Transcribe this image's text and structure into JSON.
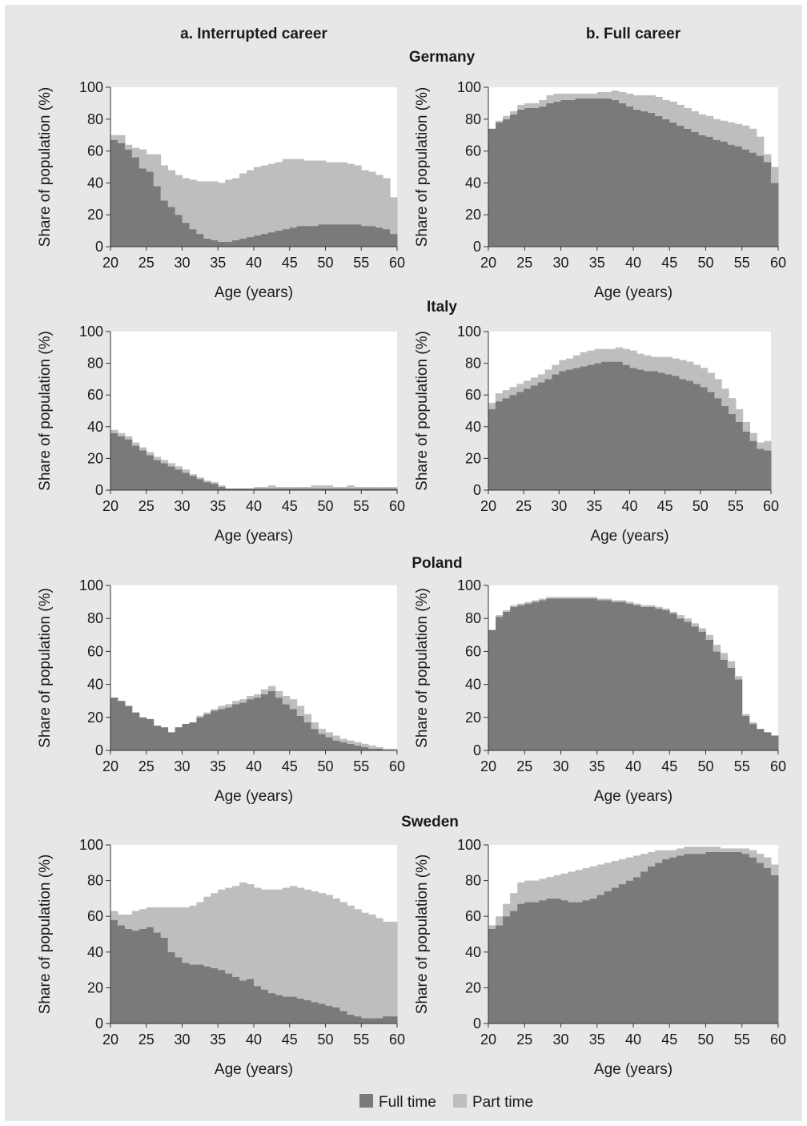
{
  "column_titles": [
    "a. Interrupted career",
    "b. Full career"
  ],
  "legend": {
    "full_time_label": "Full time",
    "part_time_label": "Part time",
    "full_time_color": "#7a7a7c",
    "part_time_color": "#bdbec0"
  },
  "chart_data": [
    {
      "type": "area",
      "country": "Germany",
      "panel": "a. Interrupted career",
      "xlabel": "Age (years)",
      "ylabel": "Share of population (%)",
      "xlim": [
        20,
        60
      ],
      "ylim": [
        0,
        100
      ],
      "xticks": [
        20,
        25,
        30,
        35,
        40,
        45,
        50,
        55,
        60
      ],
      "yticks": [
        0,
        20,
        40,
        60,
        80,
        100
      ],
      "x": [
        20,
        21,
        22,
        23,
        24,
        25,
        26,
        27,
        28,
        29,
        30,
        31,
        32,
        33,
        34,
        35,
        36,
        37,
        38,
        39,
        40,
        41,
        42,
        43,
        44,
        45,
        46,
        47,
        48,
        49,
        50,
        51,
        52,
        53,
        54,
        55,
        56,
        57,
        58,
        59
      ],
      "series": [
        {
          "name": "Full time",
          "values": [
            67,
            65,
            61,
            56,
            49,
            47,
            38,
            29,
            25,
            20,
            15,
            11,
            8,
            5,
            4,
            3,
            3,
            4,
            5,
            6,
            7,
            8,
            9,
            10,
            11,
            12,
            13,
            13,
            13,
            14,
            14,
            14,
            14,
            14,
            14,
            13,
            13,
            12,
            11,
            8
          ]
        },
        {
          "name": "Part time",
          "values": [
            3,
            5,
            3,
            6,
            12,
            11,
            20,
            22,
            23,
            25,
            28,
            31,
            33,
            36,
            37,
            37,
            39,
            39,
            41,
            42,
            43,
            43,
            43,
            43,
            44,
            43,
            42,
            41,
            41,
            40,
            39,
            39,
            39,
            38,
            37,
            35,
            34,
            33,
            32,
            23
          ]
        }
      ]
    },
    {
      "type": "area",
      "country": "Germany",
      "panel": "b. Full career",
      "xlabel": "Age (years)",
      "ylabel": "Share of population (%)",
      "xlim": [
        20,
        60
      ],
      "ylim": [
        0,
        100
      ],
      "xticks": [
        20,
        25,
        30,
        35,
        40,
        45,
        50,
        55,
        60
      ],
      "yticks": [
        0,
        20,
        40,
        60,
        80,
        100
      ],
      "x": [
        20,
        21,
        22,
        23,
        24,
        25,
        26,
        27,
        28,
        29,
        30,
        31,
        32,
        33,
        34,
        35,
        36,
        37,
        38,
        39,
        40,
        41,
        42,
        43,
        44,
        45,
        46,
        47,
        48,
        49,
        50,
        51,
        52,
        53,
        54,
        55,
        56,
        57,
        58,
        59
      ],
      "series": [
        {
          "name": "Full time",
          "values": [
            74,
            78,
            80,
            83,
            86,
            87,
            87,
            88,
            90,
            91,
            92,
            92,
            93,
            93,
            93,
            93,
            93,
            92,
            90,
            88,
            86,
            85,
            84,
            82,
            80,
            78,
            76,
            74,
            72,
            70,
            69,
            67,
            66,
            64,
            63,
            61,
            59,
            57,
            53,
            40
          ]
        },
        {
          "name": "Part time",
          "values": [
            0,
            1,
            2,
            2,
            3,
            3,
            3,
            4,
            5,
            5,
            4,
            4,
            3,
            3,
            3,
            4,
            4,
            6,
            7,
            8,
            9,
            10,
            11,
            12,
            12,
            13,
            13,
            13,
            13,
            13,
            13,
            13,
            13,
            14,
            14,
            15,
            15,
            12,
            5,
            10
          ]
        }
      ]
    },
    {
      "type": "area",
      "country": "Italy",
      "panel": "a. Interrupted career",
      "xlabel": "Age (years)",
      "ylabel": "Share of population (%)",
      "xlim": [
        20,
        60
      ],
      "ylim": [
        0,
        100
      ],
      "xticks": [
        20,
        25,
        30,
        35,
        40,
        45,
        50,
        55,
        60
      ],
      "yticks": [
        0,
        20,
        40,
        60,
        80,
        100
      ],
      "x": [
        20,
        21,
        22,
        23,
        24,
        25,
        26,
        27,
        28,
        29,
        30,
        31,
        32,
        33,
        34,
        35,
        36,
        37,
        38,
        39,
        40,
        41,
        42,
        43,
        44,
        45,
        46,
        47,
        48,
        49,
        50,
        51,
        52,
        53,
        54,
        55,
        56,
        57,
        58,
        59
      ],
      "series": [
        {
          "name": "Full time",
          "values": [
            36,
            34,
            32,
            28,
            25,
            22,
            19,
            17,
            15,
            13,
            11,
            9,
            7,
            5,
            4,
            2,
            1,
            1,
            1,
            1,
            1,
            1,
            1,
            1,
            1,
            1,
            1,
            1,
            1,
            1,
            1,
            1,
            1,
            1,
            1,
            1,
            1,
            1,
            1,
            1
          ]
        },
        {
          "name": "Part time",
          "values": [
            2,
            2,
            2,
            2,
            2,
            2,
            2,
            2,
            2,
            2,
            2,
            1,
            1,
            1,
            1,
            1,
            0,
            0,
            0,
            0,
            1,
            1,
            2,
            1,
            1,
            1,
            1,
            1,
            2,
            2,
            2,
            1,
            1,
            2,
            1,
            1,
            1,
            1,
            1,
            1
          ]
        }
      ]
    },
    {
      "type": "area",
      "country": "Italy",
      "panel": "b. Full career",
      "xlabel": "Age (years)",
      "ylabel": "Share of population (%)",
      "xlim": [
        20,
        60
      ],
      "ylim": [
        0,
        100
      ],
      "xticks": [
        20,
        25,
        30,
        35,
        40,
        45,
        50,
        55,
        60
      ],
      "yticks": [
        0,
        20,
        40,
        60,
        80,
        100
      ],
      "x": [
        20,
        21,
        22,
        23,
        24,
        25,
        26,
        27,
        28,
        29,
        30,
        31,
        32,
        33,
        34,
        35,
        36,
        37,
        38,
        39,
        40,
        41,
        42,
        43,
        44,
        45,
        46,
        47,
        48,
        49,
        50,
        51,
        52,
        53,
        54,
        55,
        56,
        57,
        58,
        59
      ],
      "series": [
        {
          "name": "Full time",
          "values": [
            51,
            56,
            58,
            60,
            62,
            64,
            66,
            68,
            70,
            73,
            75,
            76,
            77,
            78,
            79,
            80,
            81,
            81,
            81,
            79,
            77,
            76,
            75,
            75,
            74,
            73,
            72,
            70,
            69,
            67,
            65,
            62,
            58,
            53,
            48,
            43,
            37,
            31,
            26,
            25
          ]
        },
        {
          "name": "Part time",
          "values": [
            4,
            5,
            5,
            5,
            5,
            5,
            5,
            5,
            6,
            6,
            7,
            7,
            8,
            9,
            9,
            9,
            8,
            8,
            9,
            10,
            11,
            10,
            10,
            9,
            10,
            11,
            11,
            12,
            12,
            12,
            12,
            12,
            12,
            11,
            10,
            8,
            6,
            5,
            4,
            6
          ]
        }
      ]
    },
    {
      "type": "area",
      "country": "Poland",
      "panel": "a. Interrupted career",
      "xlabel": "Age (years)",
      "ylabel": "Share of population (%)",
      "xlim": [
        20,
        60
      ],
      "ylim": [
        0,
        100
      ],
      "xticks": [
        20,
        25,
        30,
        35,
        40,
        45,
        50,
        55,
        60
      ],
      "yticks": [
        0,
        20,
        40,
        60,
        80,
        100
      ],
      "x": [
        20,
        21,
        22,
        23,
        24,
        25,
        26,
        27,
        28,
        29,
        30,
        31,
        32,
        33,
        34,
        35,
        36,
        37,
        38,
        39,
        40,
        41,
        42,
        43,
        44,
        45,
        46,
        47,
        48,
        49,
        50,
        51,
        52,
        53,
        54,
        55,
        56,
        57,
        58,
        59
      ],
      "series": [
        {
          "name": "Full time",
          "values": [
            32,
            30,
            27,
            23,
            20,
            19,
            15,
            14,
            11,
            14,
            16,
            17,
            20,
            22,
            24,
            25,
            26,
            28,
            29,
            31,
            32,
            34,
            36,
            32,
            28,
            25,
            21,
            17,
            13,
            10,
            8,
            6,
            5,
            4,
            3,
            2,
            1,
            1,
            0,
            0
          ]
        },
        {
          "name": "Part time",
          "values": [
            0,
            0,
            0,
            0,
            0,
            0,
            0,
            0,
            0,
            0,
            0,
            0,
            1,
            1,
            1,
            2,
            2,
            2,
            2,
            2,
            2,
            3,
            3,
            4,
            5,
            6,
            6,
            5,
            4,
            3,
            3,
            3,
            2,
            2,
            2,
            2,
            2,
            1,
            1,
            1
          ]
        }
      ]
    },
    {
      "type": "area",
      "country": "Poland",
      "panel": "b. Full career",
      "xlabel": "Age (years)",
      "ylabel": "Share of population (%)",
      "xlim": [
        20,
        60
      ],
      "ylim": [
        0,
        100
      ],
      "xticks": [
        20,
        25,
        30,
        35,
        40,
        45,
        50,
        55,
        60
      ],
      "yticks": [
        0,
        20,
        40,
        60,
        80,
        100
      ],
      "x": [
        20,
        21,
        22,
        23,
        24,
        25,
        26,
        27,
        28,
        29,
        30,
        31,
        32,
        33,
        34,
        35,
        36,
        37,
        38,
        39,
        40,
        41,
        42,
        43,
        44,
        45,
        46,
        47,
        48,
        49,
        50,
        51,
        52,
        53,
        54,
        55,
        56,
        57,
        58,
        59
      ],
      "series": [
        {
          "name": "Full time",
          "values": [
            73,
            81,
            84,
            87,
            88,
            89,
            90,
            91,
            92,
            92,
            92,
            92,
            92,
            92,
            92,
            91,
            91,
            90,
            90,
            89,
            88,
            87,
            87,
            86,
            85,
            83,
            80,
            78,
            75,
            72,
            67,
            60,
            55,
            50,
            43,
            21,
            16,
            13,
            11,
            9
          ]
        },
        {
          "name": "Part time",
          "values": [
            0,
            1,
            1,
            1,
            1,
            1,
            1,
            1,
            1,
            1,
            1,
            1,
            1,
            1,
            1,
            1,
            1,
            1,
            1,
            1,
            1,
            1,
            1,
            1,
            1,
            1,
            2,
            2,
            2,
            2,
            3,
            4,
            4,
            4,
            2,
            1,
            1,
            0,
            0,
            0
          ]
        }
      ]
    },
    {
      "type": "area",
      "country": "Sweden",
      "panel": "a. Interrupted career",
      "xlabel": "Age (years)",
      "ylabel": "Share of population (%)",
      "xlim": [
        20,
        60
      ],
      "ylim": [
        0,
        100
      ],
      "xticks": [
        20,
        25,
        30,
        35,
        40,
        45,
        50,
        55,
        60
      ],
      "yticks": [
        0,
        20,
        40,
        60,
        80,
        100
      ],
      "x": [
        20,
        21,
        22,
        23,
        24,
        25,
        26,
        27,
        28,
        29,
        30,
        31,
        32,
        33,
        34,
        35,
        36,
        37,
        38,
        39,
        40,
        41,
        42,
        43,
        44,
        45,
        46,
        47,
        48,
        49,
        50,
        51,
        52,
        53,
        54,
        55,
        56,
        57,
        58,
        59
      ],
      "series": [
        {
          "name": "Full time",
          "values": [
            58,
            55,
            53,
            52,
            53,
            54,
            51,
            48,
            40,
            37,
            34,
            33,
            33,
            32,
            31,
            30,
            28,
            26,
            24,
            25,
            21,
            19,
            17,
            16,
            15,
            15,
            14,
            13,
            12,
            11,
            10,
            9,
            7,
            5,
            4,
            3,
            3,
            3,
            4,
            4
          ]
        },
        {
          "name": "Part time",
          "values": [
            5,
            6,
            8,
            11,
            11,
            11,
            14,
            17,
            25,
            28,
            31,
            33,
            35,
            39,
            42,
            45,
            48,
            51,
            55,
            53,
            55,
            56,
            58,
            59,
            61,
            62,
            62,
            62,
            62,
            62,
            62,
            61,
            61,
            61,
            60,
            59,
            58,
            56,
            53,
            53
          ]
        }
      ]
    },
    {
      "type": "area",
      "country": "Sweden",
      "panel": "b. Full career",
      "xlabel": "Age (years)",
      "ylabel": "Share of population (%)",
      "xlim": [
        20,
        60
      ],
      "ylim": [
        0,
        100
      ],
      "xticks": [
        20,
        25,
        30,
        35,
        40,
        45,
        50,
        55,
        60
      ],
      "yticks": [
        0,
        20,
        40,
        60,
        80,
        100
      ],
      "x": [
        20,
        21,
        22,
        23,
        24,
        25,
        26,
        27,
        28,
        29,
        30,
        31,
        32,
        33,
        34,
        35,
        36,
        37,
        38,
        39,
        40,
        41,
        42,
        43,
        44,
        45,
        46,
        47,
        48,
        49,
        50,
        51,
        52,
        53,
        54,
        55,
        56,
        57,
        58,
        59
      ],
      "series": [
        {
          "name": "Full time",
          "values": [
            53,
            55,
            60,
            63,
            67,
            68,
            68,
            69,
            70,
            70,
            69,
            68,
            68,
            69,
            70,
            72,
            74,
            76,
            78,
            80,
            82,
            85,
            88,
            90,
            92,
            93,
            94,
            95,
            95,
            95,
            96,
            96,
            96,
            96,
            96,
            95,
            93,
            90,
            87,
            83
          ]
        },
        {
          "name": "Part time",
          "values": [
            2,
            5,
            7,
            10,
            12,
            12,
            12,
            12,
            12,
            13,
            15,
            17,
            18,
            18,
            18,
            17,
            16,
            15,
            14,
            13,
            12,
            10,
            8,
            7,
            5,
            4,
            4,
            4,
            4,
            4,
            3,
            3,
            2,
            2,
            2,
            3,
            4,
            5,
            6,
            6
          ]
        }
      ]
    }
  ]
}
